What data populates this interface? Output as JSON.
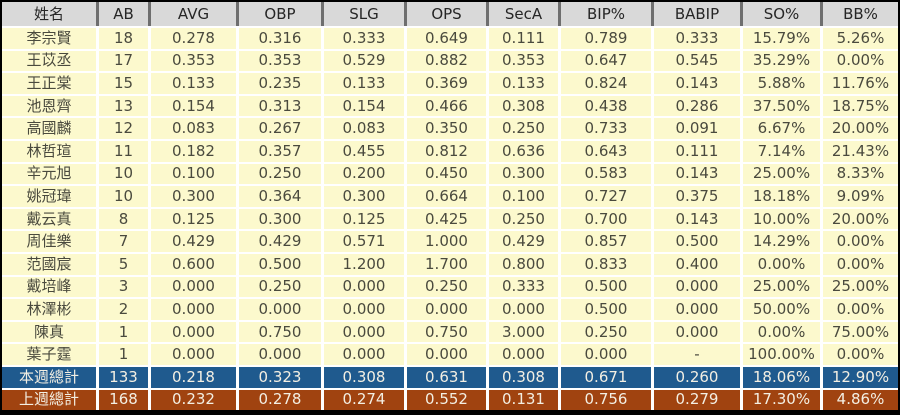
{
  "chart_data": {
    "type": "table",
    "columns": [
      "姓名",
      "AB",
      "AVG",
      "OBP",
      "SLG",
      "OPS",
      "SecA",
      "BIP%",
      "BABIP",
      "SO%",
      "BB%"
    ],
    "rows": [
      [
        "李宗賢",
        "18",
        "0.278",
        "0.316",
        "0.333",
        "0.649",
        "0.111",
        "0.789",
        "0.333",
        "15.79%",
        "5.26%"
      ],
      [
        "王苡丞",
        "17",
        "0.353",
        "0.353",
        "0.529",
        "0.882",
        "0.353",
        "0.647",
        "0.545",
        "35.29%",
        "0.00%"
      ],
      [
        "王正棠",
        "15",
        "0.133",
        "0.235",
        "0.133",
        "0.369",
        "0.133",
        "0.824",
        "0.143",
        "5.88%",
        "11.76%"
      ],
      [
        "池恩齊",
        "13",
        "0.154",
        "0.313",
        "0.154",
        "0.466",
        "0.308",
        "0.438",
        "0.286",
        "37.50%",
        "18.75%"
      ],
      [
        "高國麟",
        "12",
        "0.083",
        "0.267",
        "0.083",
        "0.350",
        "0.250",
        "0.733",
        "0.091",
        "6.67%",
        "20.00%"
      ],
      [
        "林哲瑄",
        "11",
        "0.182",
        "0.357",
        "0.455",
        "0.812",
        "0.636",
        "0.643",
        "0.111",
        "7.14%",
        "21.43%"
      ],
      [
        "辛元旭",
        "10",
        "0.100",
        "0.250",
        "0.200",
        "0.450",
        "0.300",
        "0.583",
        "0.143",
        "25.00%",
        "8.33%"
      ],
      [
        "姚冠瑋",
        "10",
        "0.300",
        "0.364",
        "0.300",
        "0.664",
        "0.100",
        "0.727",
        "0.375",
        "18.18%",
        "9.09%"
      ],
      [
        "戴云真",
        "8",
        "0.125",
        "0.300",
        "0.125",
        "0.425",
        "0.250",
        "0.700",
        "0.143",
        "10.00%",
        "20.00%"
      ],
      [
        "周佳樂",
        "7",
        "0.429",
        "0.429",
        "0.571",
        "1.000",
        "0.429",
        "0.857",
        "0.500",
        "14.29%",
        "0.00%"
      ],
      [
        "范國宸",
        "5",
        "0.600",
        "0.500",
        "1.200",
        "1.700",
        "0.800",
        "0.833",
        "0.400",
        "0.00%",
        "0.00%"
      ],
      [
        "戴培峰",
        "3",
        "0.000",
        "0.250",
        "0.000",
        "0.250",
        "0.333",
        "0.500",
        "0.000",
        "25.00%",
        "25.00%"
      ],
      [
        "林澤彬",
        "2",
        "0.000",
        "0.000",
        "0.000",
        "0.000",
        "0.000",
        "0.500",
        "0.000",
        "50.00%",
        "0.00%"
      ],
      [
        "陳真",
        "1",
        "0.000",
        "0.750",
        "0.000",
        "0.750",
        "3.000",
        "0.250",
        "0.000",
        "0.00%",
        "75.00%"
      ],
      [
        "葉子霆",
        "1",
        "0.000",
        "0.000",
        "0.000",
        "0.000",
        "0.000",
        "0.000",
        "-",
        "100.00%",
        "0.00%"
      ]
    ],
    "totals": [
      {
        "label": "本週總計",
        "values": [
          "133",
          "0.218",
          "0.323",
          "0.308",
          "0.631",
          "0.308",
          "0.671",
          "0.260",
          "18.06%",
          "12.90%"
        ]
      },
      {
        "label": "上週總計",
        "values": [
          "168",
          "0.232",
          "0.278",
          "0.274",
          "0.552",
          "0.131",
          "0.756",
          "0.279",
          "17.30%",
          "4.86%"
        ]
      }
    ],
    "layout_hints": {
      "header_position": "top",
      "grid": "white gridlines on black frame",
      "total_row_order": [
        "this-week",
        "last-week"
      ]
    }
  },
  "colors": {
    "page_bg": "#000000",
    "header_bg": "#d9d9d9",
    "header_text": "#262626",
    "header_divider": "#6e6e6e",
    "body_row_bg": "#fcf9cd",
    "body_text": "#4a4a3e",
    "gridline": "#ffffff",
    "week_total_bg": "#1f5a8e",
    "prev_total_bg": "#a04310",
    "total_text": "#f3efe3"
  }
}
